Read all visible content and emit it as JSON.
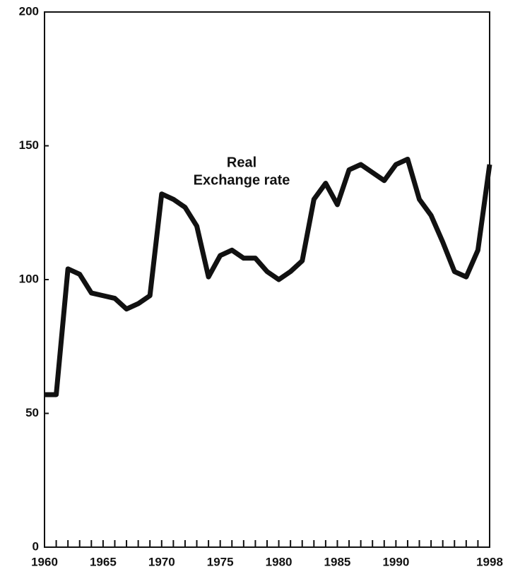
{
  "chart_data": {
    "type": "line",
    "annotation": [
      "Real",
      "Exchange rate"
    ],
    "x": [
      1960,
      1961,
      1962,
      1963,
      1964,
      1965,
      1966,
      1967,
      1968,
      1969,
      1970,
      1971,
      1972,
      1973,
      1974,
      1975,
      1976,
      1977,
      1978,
      1979,
      1980,
      1981,
      1982,
      1983,
      1984,
      1985,
      1986,
      1987,
      1988,
      1989,
      1990,
      1991,
      1992,
      1993,
      1994,
      1995,
      1996,
      1997,
      1998
    ],
    "series": [
      {
        "name": "Real Exchange rate",
        "color": "#111111",
        "values": [
          57,
          57,
          104,
          102,
          95,
          94,
          93,
          89,
          91,
          94,
          132,
          130,
          127,
          120,
          101,
          109,
          111,
          108,
          108,
          103,
          100,
          103,
          107,
          130,
          136,
          128,
          141,
          143,
          140,
          137,
          143,
          145,
          130,
          124,
          114,
          103,
          101,
          111,
          143
        ]
      }
    ],
    "xlim": [
      1960,
      1998
    ],
    "xticks": [
      1960,
      1965,
      1970,
      1975,
      1980,
      1985,
      1990,
      1998
    ],
    "ylim": [
      0,
      200
    ],
    "yticks": [
      0,
      50,
      100,
      150,
      200
    ],
    "grid": false
  }
}
